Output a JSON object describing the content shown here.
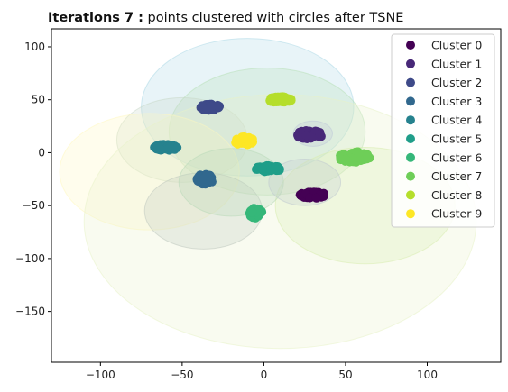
{
  "chart_data": {
    "type": "scatter",
    "title_bold": "Iterations 7 :",
    "title_rest": " points clustered with circles after TSNE",
    "xlabel": "",
    "ylabel": "",
    "xlim": [
      -130,
      145
    ],
    "ylim": [
      -198,
      117
    ],
    "xticks": [
      -100,
      -50,
      0,
      50,
      100
    ],
    "yticks": [
      -150,
      -100,
      -50,
      0,
      50,
      100
    ],
    "legend_position": "top-right",
    "grid": false,
    "series": [
      {
        "name": "Cluster 0",
        "color": "#440154",
        "center": [
          30,
          -40
        ],
        "spread": [
          8,
          3
        ]
      },
      {
        "name": "Cluster 1",
        "color": "#482878",
        "center": [
          28,
          17
        ],
        "spread": [
          8,
          4
        ]
      },
      {
        "name": "Cluster 2",
        "color": "#3e4a89",
        "center": [
          -33,
          43
        ],
        "spread": [
          6,
          3
        ]
      },
      {
        "name": "Cluster 3",
        "color": "#31688e",
        "center": [
          -36,
          -25
        ],
        "spread": [
          5,
          5
        ]
      },
      {
        "name": "Cluster 4",
        "color": "#26828e",
        "center": [
          -60,
          5
        ],
        "spread": [
          7,
          3
        ]
      },
      {
        "name": "Cluster 5",
        "color": "#1f9e89",
        "center": [
          3,
          -15
        ],
        "spread": [
          8,
          3
        ]
      },
      {
        "name": "Cluster 6",
        "color": "#35b779",
        "center": [
          -5,
          -57
        ],
        "spread": [
          4,
          5
        ]
      },
      {
        "name": "Cluster 7",
        "color": "#6ece58",
        "center": [
          55,
          -4
        ],
        "spread": [
          10,
          5
        ]
      },
      {
        "name": "Cluster 8",
        "color": "#b5de2b",
        "center": [
          10,
          50
        ],
        "spread": [
          7,
          3
        ]
      },
      {
        "name": "Cluster 9",
        "color": "#fde725",
        "center": [
          -12,
          11
        ],
        "spread": [
          6,
          4
        ]
      }
    ],
    "circles": [
      {
        "cx": -10,
        "cy": 43,
        "r": 65,
        "color": "#add8e6"
      },
      {
        "cx": 2,
        "cy": 20,
        "r": 60,
        "color": "#b8e0b8"
      },
      {
        "cx": -50,
        "cy": 12,
        "r": 40,
        "color": "#c8d8c8"
      },
      {
        "cx": -70,
        "cy": -18,
        "r": 55,
        "color": "#fff7c0"
      },
      {
        "cx": 10,
        "cy": -65,
        "r": 120,
        "color": "#e8f2c8"
      },
      {
        "cx": 62,
        "cy": -50,
        "r": 55,
        "color": "#d8ecb0"
      },
      {
        "cx": -37,
        "cy": -55,
        "r": 36,
        "color": "#c0c8c0"
      },
      {
        "cx": -20,
        "cy": -28,
        "r": 32,
        "color": "#b8d8b8"
      },
      {
        "cx": 25,
        "cy": -28,
        "r": 22,
        "color": "#c0c8d0"
      },
      {
        "cx": 30,
        "cy": 18,
        "r": 12,
        "color": "#c0c8d8"
      }
    ]
  }
}
